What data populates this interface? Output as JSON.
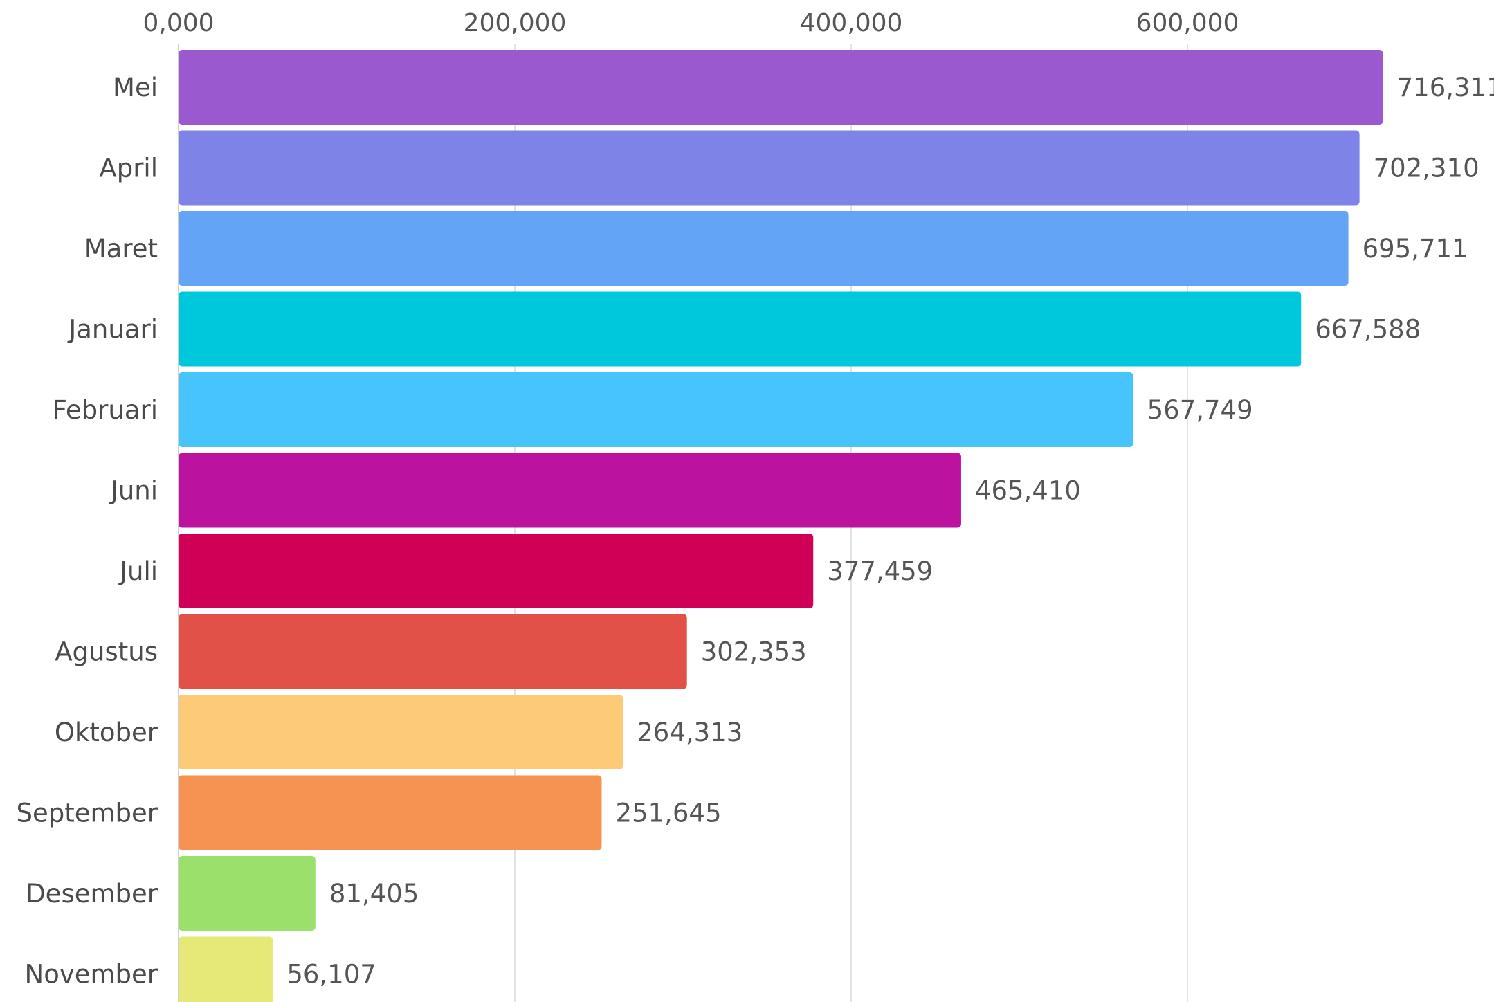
{
  "chart_data": {
    "type": "bar",
    "orientation": "horizontal",
    "categories": [
      "Mei",
      "April",
      "Maret",
      "Januari",
      "Februari",
      "Juni",
      "Juli",
      "Agustus",
      "Oktober",
      "September",
      "Desember",
      "November"
    ],
    "values": [
      716311,
      702310,
      695711,
      667588,
      567749,
      465410,
      377459,
      302353,
      264313,
      251645,
      81405,
      56107
    ],
    "value_labels": [
      "716,311",
      "702,310",
      "695,711",
      "667,588",
      "567,749",
      "465,410",
      "377,459",
      "302,353",
      "264,313",
      "251,645",
      "81,405",
      "56,107"
    ],
    "colors": [
      "#9b59d0",
      "#7e83e8",
      "#63a4f7",
      "#00c8dc",
      "#47c4fc",
      "#bb12a0",
      "#d00057",
      "#e25148",
      "#fdca78",
      "#f69353",
      "#9be06b",
      "#e6e878"
    ],
    "x_ticks": [
      0,
      200000,
      400000,
      600000
    ],
    "x_tick_labels": [
      "0,000",
      "200,000",
      "400,000",
      "600,000"
    ],
    "xlim": [
      0,
      800000
    ],
    "x_axis_position": "top",
    "grid": true,
    "title": "",
    "xlabel": "",
    "ylabel": ""
  }
}
